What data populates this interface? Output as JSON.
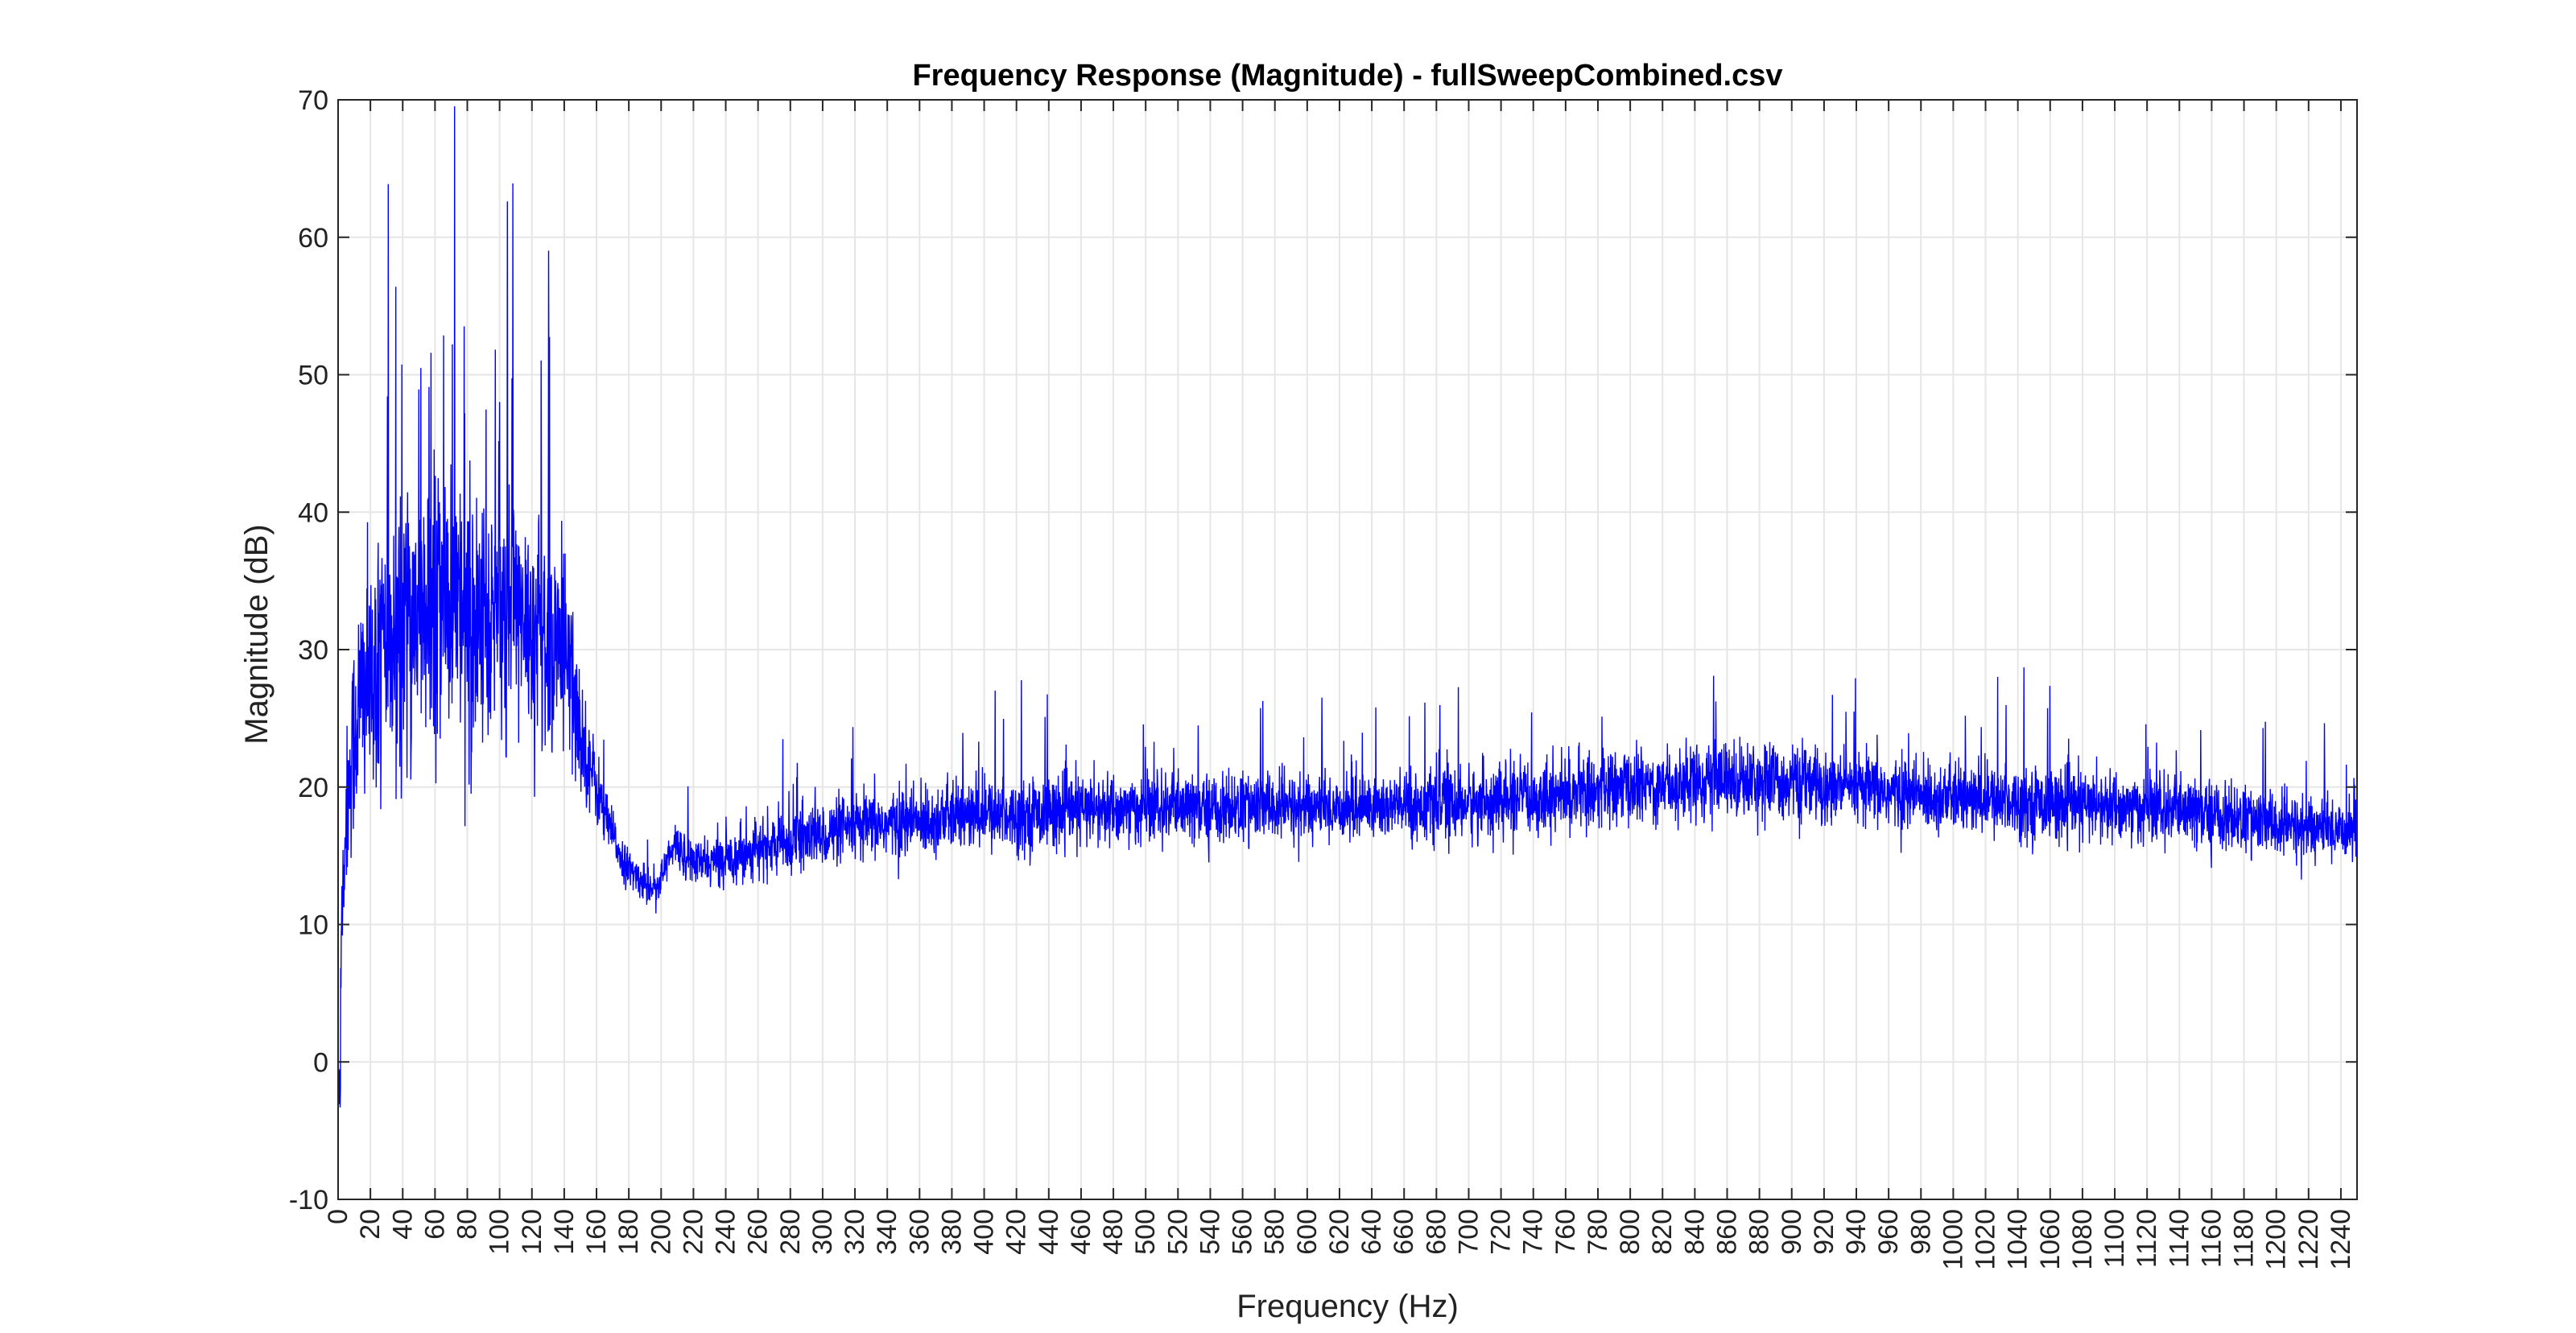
{
  "chart_data": {
    "type": "line",
    "title": "Frequency Response (Magnitude) - fullSweepCombined.csv",
    "xlabel": "Frequency (Hz)",
    "ylabel": "Magnitude (dB)",
    "xlim": [
      0,
      1250
    ],
    "ylim": [
      -10,
      70
    ],
    "grid": true,
    "legend": "none",
    "x_ticks": [
      0,
      20,
      40,
      60,
      80,
      100,
      120,
      140,
      160,
      180,
      200,
      220,
      240,
      260,
      280,
      300,
      320,
      340,
      360,
      380,
      400,
      420,
      440,
      460,
      480,
      500,
      520,
      540,
      560,
      580,
      600,
      620,
      640,
      660,
      680,
      700,
      720,
      740,
      760,
      780,
      800,
      820,
      840,
      860,
      880,
      900,
      920,
      940,
      960,
      980,
      1000,
      1020,
      1040,
      1060,
      1080,
      1100,
      1120,
      1140,
      1160,
      1180,
      1200,
      1220,
      1240
    ],
    "y_ticks": [
      -10,
      0,
      10,
      20,
      30,
      40,
      50,
      60,
      70
    ],
    "series": [
      {
        "color": "#0000ff",
        "x": [
          0,
          2,
          5,
          10,
          15,
          20,
          30,
          40,
          50,
          60,
          70,
          80,
          90,
          100,
          110,
          120,
          130,
          140,
          145,
          150,
          155,
          160,
          165,
          170,
          175,
          180,
          185,
          190,
          195,
          200,
          205,
          210,
          215,
          220,
          230,
          240,
          250,
          260,
          280,
          300,
          320,
          340,
          360,
          380,
          400,
          420,
          440,
          460,
          480,
          500,
          520,
          540,
          560,
          580,
          600,
          620,
          640,
          660,
          680,
          700,
          720,
          740,
          760,
          780,
          800,
          820,
          840,
          860,
          880,
          900,
          920,
          940,
          960,
          980,
          1000,
          1020,
          1040,
          1060,
          1080,
          1100,
          1120,
          1140,
          1160,
          1180,
          1200,
          1220,
          1240,
          1250
        ],
        "y": [
          -4,
          10,
          18,
          24,
          27,
          28,
          30,
          32,
          33,
          33,
          32,
          32,
          32,
          32,
          32,
          32,
          31,
          30,
          27,
          24,
          22,
          20,
          18,
          16.5,
          15,
          14,
          13.5,
          13,
          12.8,
          13.2,
          15,
          15.8,
          15,
          14.5,
          14.5,
          14.8,
          15.2,
          15.5,
          16,
          16.5,
          17,
          17.3,
          17.5,
          17.8,
          18,
          18,
          18.2,
          18.3,
          18.3,
          18.4,
          18.4,
          18.4,
          18.5,
          18.5,
          18.5,
          18.5,
          18.6,
          18.6,
          18.7,
          18.8,
          19,
          19.2,
          19.5,
          19.8,
          20,
          20.2,
          20.4,
          20.6,
          20.5,
          20.3,
          20,
          19.8,
          19.6,
          19.4,
          19.2,
          19,
          19,
          18.8,
          18.6,
          18.5,
          18.4,
          18.2,
          18,
          17.6,
          17.2,
          17,
          17,
          17
        ],
        "noise_dB": [
          0,
          4,
          5,
          7,
          8,
          8,
          9,
          9,
          9,
          9,
          9,
          9,
          9,
          9,
          9,
          8,
          8,
          7,
          6,
          4,
          3,
          2.5,
          2,
          1.5,
          1.5,
          1.2,
          1.2,
          1.2,
          1.2,
          1.3,
          1.5,
          1.5,
          1.5,
          1.5,
          1.5,
          1.6,
          1.8,
          1.8,
          2,
          2,
          2.2,
          2.2,
          2.3,
          2.3,
          2.3,
          2.3,
          2.3,
          2.3,
          2.3,
          2.3,
          2.3,
          2.3,
          2.3,
          2.3,
          2.3,
          2.3,
          2.3,
          2.3,
          2.3,
          2.4,
          2.4,
          2.4,
          2.4,
          2.4,
          2.4,
          2.4,
          2.5,
          2.5,
          2.5,
          2.5,
          2.5,
          2.4,
          2.4,
          2.3,
          2.3,
          2.3,
          2.3,
          2.3,
          2.3,
          2.3,
          2.3,
          2.3,
          2.3,
          2.2,
          2.2,
          2.2,
          2.2,
          2.2
        ]
      }
    ]
  }
}
